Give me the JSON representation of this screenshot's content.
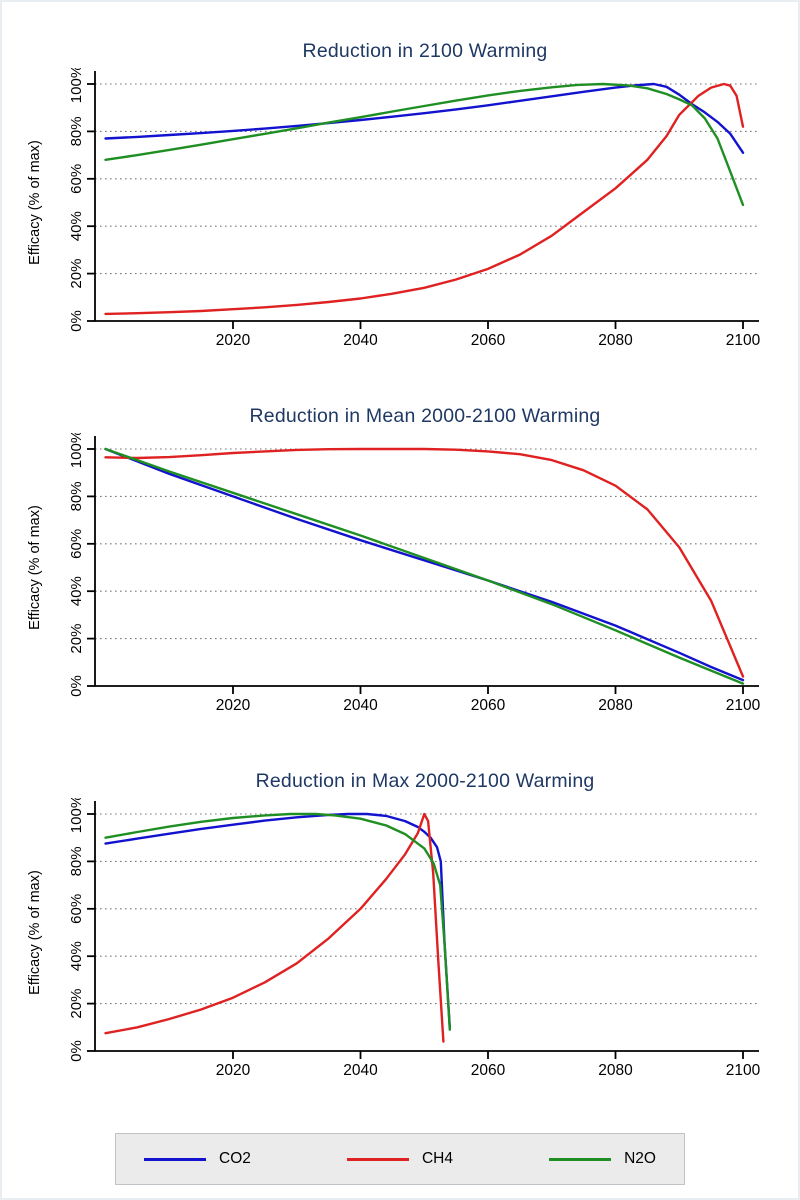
{
  "figure": {
    "background": "#ffffff",
    "border_color": "#e7edf0"
  },
  "legend": {
    "background": "#ebebeb",
    "border_color": "#bfc4c9",
    "items": [
      {
        "label": "CO2",
        "color": "#1212cf"
      },
      {
        "label": "CH4",
        "color": "#df2121"
      },
      {
        "label": "N2O",
        "color": "#1f8f24"
      }
    ]
  },
  "style": {
    "title_color": "#1f3864",
    "axis_color": "#000000",
    "gridline_color": "#7a7a7a"
  },
  "chart_data": [
    {
      "type": "line",
      "title": "Reduction in 2100 Warming",
      "ylabel": "Efficacy (% of max)",
      "xlabel": "",
      "xlim": [
        2000,
        2100
      ],
      "ylim": [
        0,
        100
      ],
      "xticks": [
        2020,
        2040,
        2060,
        2080,
        2100
      ],
      "xtick_labels": [
        "2020",
        "2040",
        "2060",
        "2080",
        "2100"
      ],
      "yticks": [
        0,
        20,
        40,
        60,
        80,
        100
      ],
      "ytick_labels": [
        "0%",
        "20%",
        "40%",
        "60%",
        "80%",
        "100%"
      ],
      "grid": "dotted-horizontal",
      "legend_position": "bottom",
      "series": [
        {
          "name": "CO2",
          "color": "#1212cf",
          "x": [
            2000,
            2005,
            2010,
            2015,
            2020,
            2025,
            2030,
            2035,
            2040,
            2045,
            2050,
            2055,
            2060,
            2065,
            2070,
            2075,
            2080,
            2083,
            2086,
            2088,
            2090,
            2092,
            2094,
            2096,
            2098,
            2100
          ],
          "y": [
            77,
            77.7,
            78.5,
            79.3,
            80.2,
            81.2,
            82.3,
            83.5,
            84.8,
            86.2,
            87.7,
            89.3,
            91,
            92.9,
            94.8,
            96.7,
            98.5,
            99.4,
            100,
            98.8,
            95.5,
            91.5,
            88,
            84,
            79,
            71
          ]
        },
        {
          "name": "CH4",
          "color": "#df2121",
          "x": [
            2000,
            2005,
            2010,
            2015,
            2020,
            2025,
            2030,
            2035,
            2040,
            2045,
            2050,
            2055,
            2060,
            2065,
            2070,
            2075,
            2080,
            2085,
            2088,
            2090,
            2093,
            2095,
            2097,
            2098,
            2099,
            2100
          ],
          "y": [
            3,
            3.3,
            3.7,
            4.2,
            5,
            5.8,
            6.8,
            8,
            9.5,
            11.5,
            14,
            17.5,
            22,
            28,
            36,
            46,
            56,
            68,
            78,
            87,
            95,
            98.5,
            100,
            99.3,
            95,
            82
          ]
        },
        {
          "name": "N2O",
          "color": "#1f8f24",
          "x": [
            2000,
            2005,
            2010,
            2015,
            2020,
            2025,
            2030,
            2035,
            2040,
            2045,
            2050,
            2055,
            2060,
            2065,
            2070,
            2074,
            2078,
            2082,
            2085,
            2088,
            2090,
            2092,
            2094,
            2096,
            2098,
            2100
          ],
          "y": [
            68,
            70,
            72.2,
            74.4,
            76.7,
            79,
            81.3,
            83.7,
            86,
            88.4,
            90.7,
            93,
            95.2,
            97.1,
            98.6,
            99.6,
            100,
            99.4,
            98.2,
            95.8,
            93.5,
            91,
            85.5,
            77,
            63,
            49
          ]
        }
      ]
    },
    {
      "type": "line",
      "title": "Reduction in Mean 2000-2100 Warming",
      "ylabel": "Efficacy (% of max)",
      "xlabel": "",
      "xlim": [
        2000,
        2100
      ],
      "ylim": [
        0,
        100
      ],
      "xticks": [
        2020,
        2040,
        2060,
        2080,
        2100
      ],
      "xtick_labels": [
        "2020",
        "2040",
        "2060",
        "2080",
        "2100"
      ],
      "yticks": [
        0,
        20,
        40,
        60,
        80,
        100
      ],
      "ytick_labels": [
        "0%",
        "20%",
        "40%",
        "60%",
        "80%",
        "100%"
      ],
      "grid": "dotted-horizontal",
      "legend_position": "bottom",
      "series": [
        {
          "name": "CO2",
          "color": "#1212cf",
          "x": [
            2000,
            2010,
            2020,
            2030,
            2040,
            2050,
            2060,
            2070,
            2080,
            2090,
            2095,
            2100
          ],
          "y": [
            100,
            89.5,
            80,
            70.5,
            61.5,
            53,
            44.5,
            35.5,
            25.5,
            14,
            8,
            2.5
          ]
        },
        {
          "name": "CH4",
          "color": "#df2121",
          "x": [
            2000,
            2005,
            2010,
            2015,
            2020,
            2025,
            2030,
            2035,
            2040,
            2045,
            2050,
            2055,
            2060,
            2065,
            2070,
            2075,
            2080,
            2085,
            2090,
            2095,
            2100
          ],
          "y": [
            96.5,
            96.2,
            96.6,
            97.4,
            98.3,
            99,
            99.6,
            99.9,
            100,
            100,
            100,
            99.7,
            99,
            97.8,
            95.3,
            91,
            84.5,
            74.5,
            58.5,
            36,
            4
          ]
        },
        {
          "name": "N2O",
          "color": "#1f8f24",
          "x": [
            2000,
            2010,
            2020,
            2030,
            2040,
            2050,
            2060,
            2070,
            2080,
            2090,
            2095,
            2100
          ],
          "y": [
            100,
            90.5,
            81.5,
            72.5,
            63.5,
            54,
            44.5,
            34.5,
            23.5,
            12,
            6.5,
            1
          ]
        }
      ]
    },
    {
      "type": "line",
      "title": "Reduction in Max 2000-2100 Warming",
      "ylabel": "Efficacy (% of max)",
      "xlabel": "",
      "xlim": [
        2000,
        2100
      ],
      "ylim": [
        0,
        100
      ],
      "xticks": [
        2020,
        2040,
        2060,
        2080,
        2100
      ],
      "xtick_labels": [
        "2020",
        "2040",
        "2060",
        "2080",
        "2100"
      ],
      "yticks": [
        0,
        20,
        40,
        60,
        80,
        100
      ],
      "ytick_labels": [
        "0%",
        "20%",
        "40%",
        "60%",
        "80%",
        "100%"
      ],
      "grid": "dotted-horizontal",
      "legend_position": "bottom",
      "series": [
        {
          "name": "CO2",
          "color": "#1212cf",
          "x": [
            2000,
            2005,
            2010,
            2015,
            2020,
            2025,
            2030,
            2035,
            2038,
            2041,
            2044,
            2047,
            2049,
            2050,
            2051,
            2052,
            2052.6,
            2053.2,
            2054
          ],
          "y": [
            87.5,
            89.6,
            91.7,
            93.7,
            95.5,
            97.2,
            98.6,
            99.6,
            100,
            100,
            99.2,
            97,
            94.5,
            92.5,
            90,
            86,
            80,
            45,
            10
          ]
        },
        {
          "name": "CH4",
          "color": "#df2121",
          "x": [
            2000,
            2005,
            2010,
            2015,
            2020,
            2025,
            2030,
            2035,
            2040,
            2044,
            2047,
            2049,
            2050,
            2050.6,
            2051.4,
            2052.2,
            2053
          ],
          "y": [
            7.5,
            10,
            13.5,
            17.5,
            22.5,
            29,
            37,
            47.5,
            60,
            72.5,
            83,
            92,
            100,
            97,
            75,
            38,
            4
          ]
        },
        {
          "name": "N2O",
          "color": "#1f8f24",
          "x": [
            2000,
            2005,
            2010,
            2015,
            2020,
            2025,
            2029,
            2033,
            2036,
            2040,
            2044,
            2047,
            2050,
            2051.5,
            2052.5,
            2053.2,
            2054
          ],
          "y": [
            90,
            92.4,
            94.7,
            96.7,
            98.3,
            99.4,
            100,
            100,
            99.4,
            98,
            95.2,
            91.5,
            85.5,
            79,
            70,
            45,
            9
          ]
        }
      ]
    }
  ]
}
